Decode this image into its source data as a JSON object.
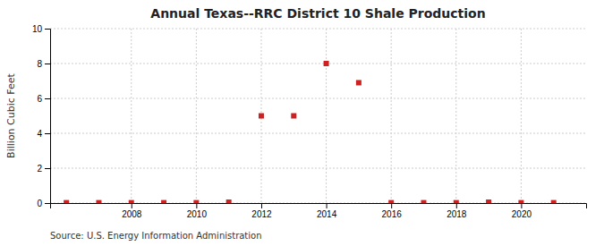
{
  "chart_data": {
    "type": "scatter",
    "title": "Annual Texas--RRC District 10 Shale Production",
    "ylabel": "Billion Cubic Feet",
    "source": "Source: U.S. Energy Information Administration",
    "x": [
      2006,
      2007,
      2008,
      2009,
      2010,
      2011,
      2012,
      2013,
      2014,
      2015,
      2016,
      2017,
      2018,
      2019,
      2020,
      2021
    ],
    "values": [
      0.02,
      0.02,
      0.02,
      0.02,
      0.02,
      0.05,
      5.0,
      5.0,
      8.0,
      6.9,
      0.02,
      0.02,
      0.02,
      0.05,
      0.02,
      0.02
    ],
    "color": "#cc2222",
    "marker": "square",
    "xlim": [
      2005.5,
      2022
    ],
    "ylim": [
      0,
      10
    ],
    "xticks": [
      2008,
      2010,
      2012,
      2014,
      2016,
      2018,
      2020
    ],
    "yticks": [
      0,
      2,
      4,
      6,
      8,
      10
    ],
    "grid": true
  }
}
